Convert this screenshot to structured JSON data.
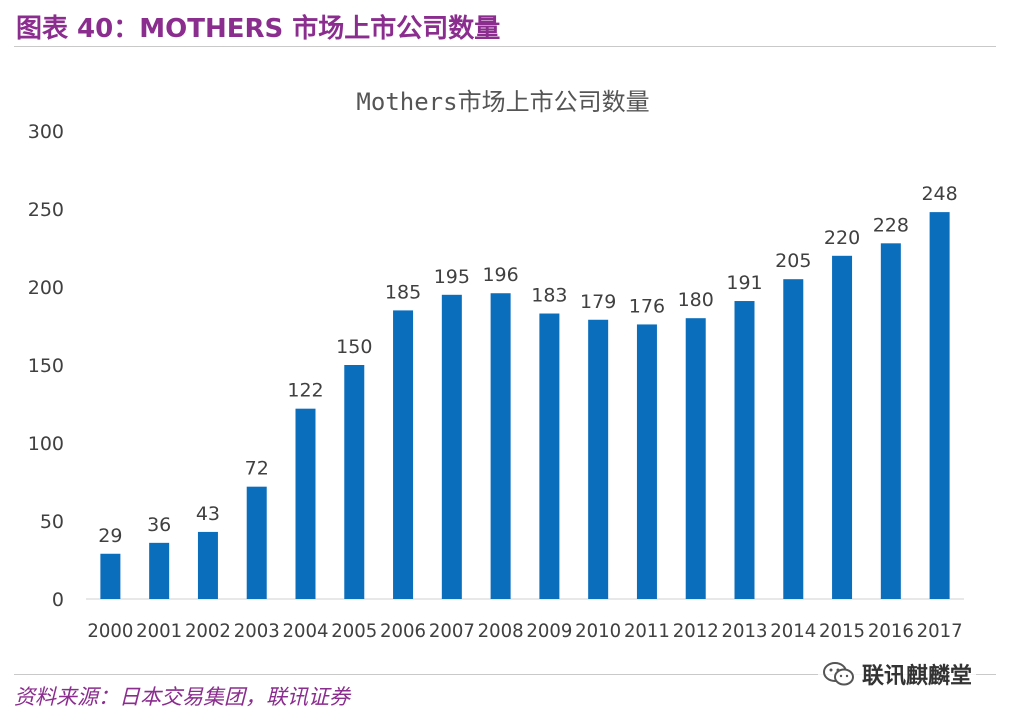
{
  "figure": {
    "header": "图表 40：MOTHERS 市场上市公司数量",
    "source": "资料来源：日本交易集团，联讯证券",
    "watermark_text": "联讯麒麟堂",
    "watermark_icon": "wechat-icon"
  },
  "colors": {
    "bar": "#0a6ebd",
    "header": "#8b2c8f",
    "axis_text": "#404040",
    "baseline": "#d0d0d0"
  },
  "chart_data": {
    "type": "bar",
    "title": "Mothers市场上市公司数量",
    "xlabel": "",
    "ylabel": "",
    "categories": [
      "2000",
      "2001",
      "2002",
      "2003",
      "2004",
      "2005",
      "2006",
      "2007",
      "2008",
      "2009",
      "2010",
      "2011",
      "2012",
      "2013",
      "2014",
      "2015",
      "2016",
      "2017"
    ],
    "values": [
      29,
      36,
      43,
      72,
      122,
      150,
      185,
      195,
      196,
      183,
      179,
      176,
      180,
      191,
      205,
      220,
      228,
      248
    ],
    "ylim": [
      0,
      300
    ],
    "yticks": [
      0,
      50,
      100,
      150,
      200,
      250,
      300
    ],
    "grid": false,
    "legend": "none",
    "data_labels": true
  }
}
